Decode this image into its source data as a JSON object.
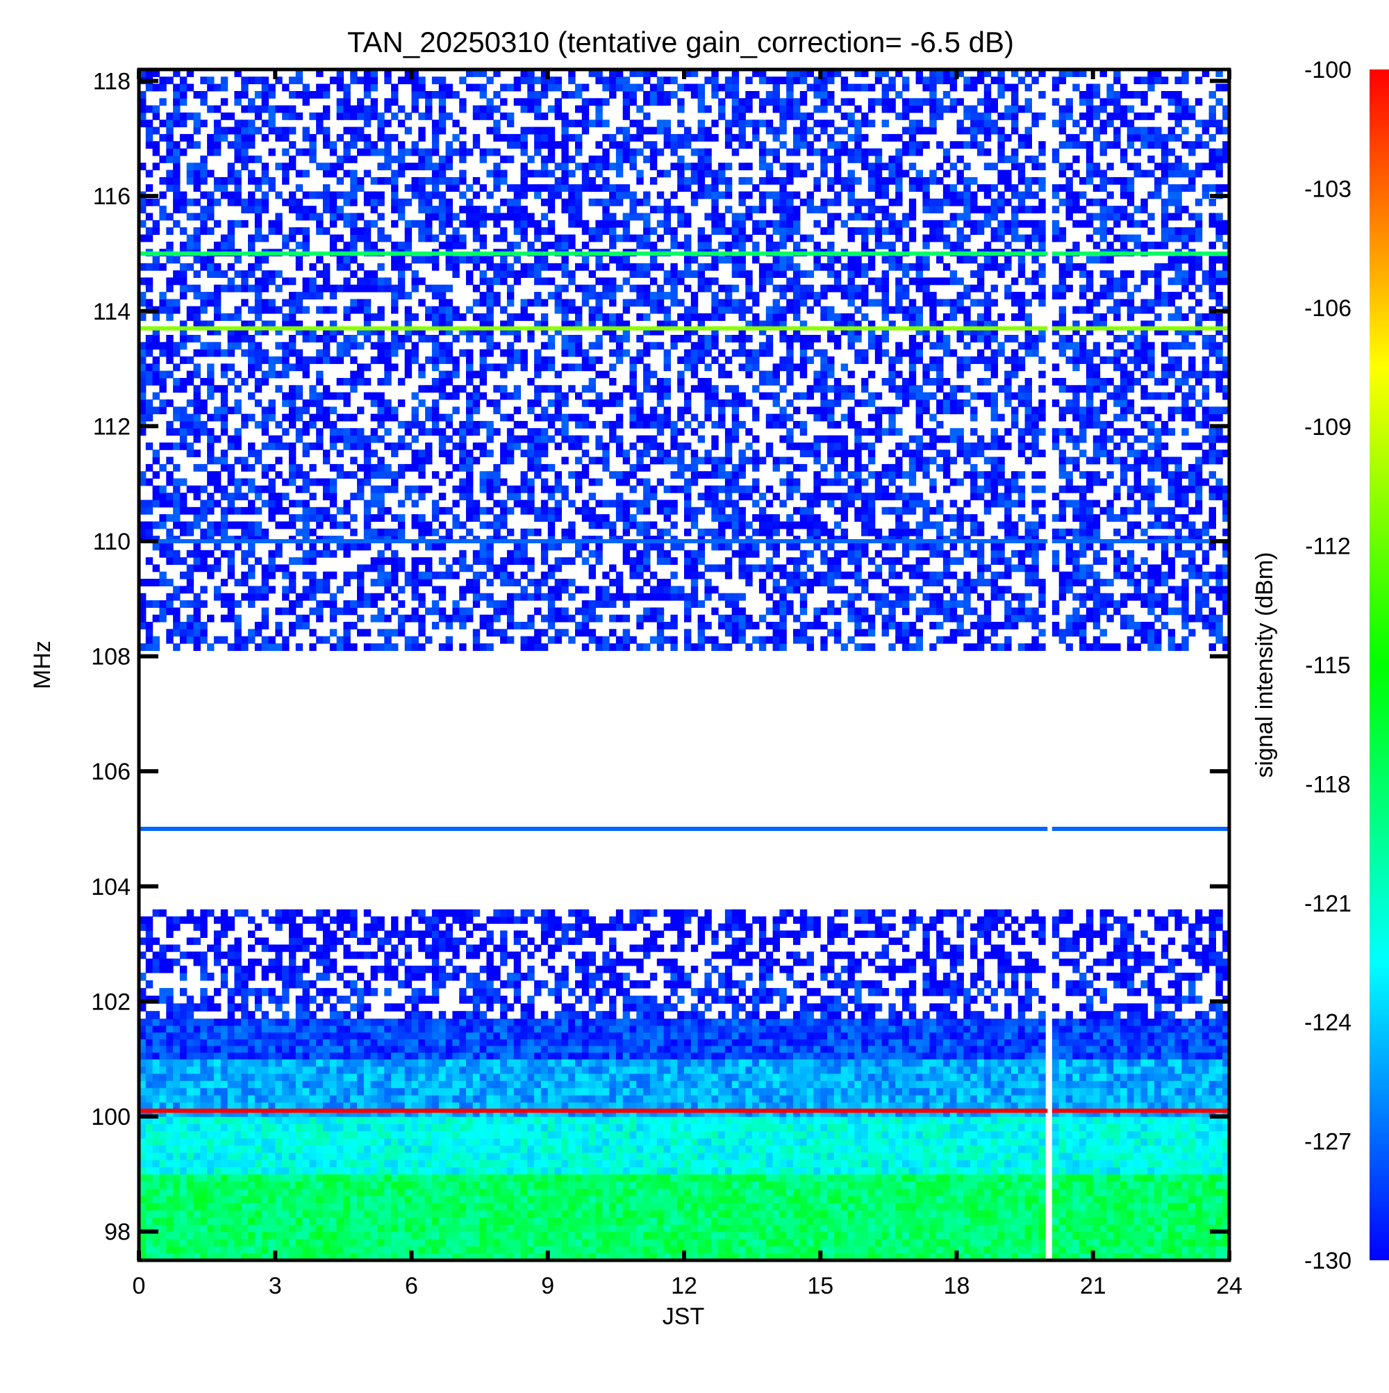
{
  "chart_data": {
    "type": "heatmap",
    "title": "TAN_20250310 (tentative gain_correction= -6.5 dB)",
    "xlabel": "JST",
    "ylabel": "MHz",
    "colorbar_label": "signal intensity (dBm)",
    "xlim": [
      0,
      24
    ],
    "ylim": [
      97.5,
      118.2
    ],
    "x_ticks": [
      0,
      3,
      6,
      9,
      12,
      15,
      18,
      21,
      24
    ],
    "x_tick_labels": [
      "0",
      "3",
      "6",
      "9",
      "12",
      "15",
      "18",
      "21",
      "24"
    ],
    "y_ticks": [
      98,
      100,
      102,
      104,
      106,
      108,
      110,
      112,
      114,
      116,
      118
    ],
    "y_tick_labels": [
      "98",
      "100",
      "102",
      "104",
      "106",
      "108",
      "110",
      "112",
      "114",
      "116",
      "118"
    ],
    "colorbar_range": [
      -130,
      -100
    ],
    "colorbar_ticks": [
      -100,
      -103,
      -106,
      -109,
      -112,
      -115,
      -118,
      -121,
      -124,
      -127,
      -130
    ],
    "colorbar_tick_labels": [
      "-100",
      "-103",
      "-106",
      "-109",
      "-112",
      "-115",
      "-118",
      "-121",
      "-124",
      "-127",
      "-130"
    ],
    "colormap": [
      "#0000ff",
      "#0080ff",
      "#00ffff",
      "#00ff80",
      "#00ff00",
      "#80ff00",
      "#ffff00",
      "#ff8000",
      "#ff0000"
    ],
    "data_gap_jst": [
      20.0,
      20.1
    ],
    "strong_lines": [
      {
        "freq_mhz": 115.0,
        "level_dbm": -118
      },
      {
        "freq_mhz": 113.7,
        "level_dbm": -111
      },
      {
        "freq_mhz": 110.0,
        "level_dbm": -127
      },
      {
        "freq_mhz": 105.0,
        "level_dbm": -127
      },
      {
        "freq_mhz": 100.1,
        "level_dbm": -100
      }
    ],
    "band_levels": [
      {
        "freq_range_mhz": [
          97.5,
          99.0
        ],
        "level_dbm": -118
      },
      {
        "freq_range_mhz": [
          99.0,
          100.0
        ],
        "level_dbm": -122
      },
      {
        "freq_range_mhz": [
          100.0,
          101.0
        ],
        "level_dbm": -125
      },
      {
        "freq_range_mhz": [
          101.0,
          101.7
        ],
        "level_dbm": -128
      },
      {
        "freq_range_mhz": [
          101.7,
          102.5
        ],
        "level_dbm": -129
      },
      {
        "freq_range_mhz": [
          102.5,
          103.6
        ],
        "level_dbm": -130
      },
      {
        "freq_range_mhz": [
          108.1,
          118.2
        ],
        "level_dbm": -129
      }
    ]
  }
}
